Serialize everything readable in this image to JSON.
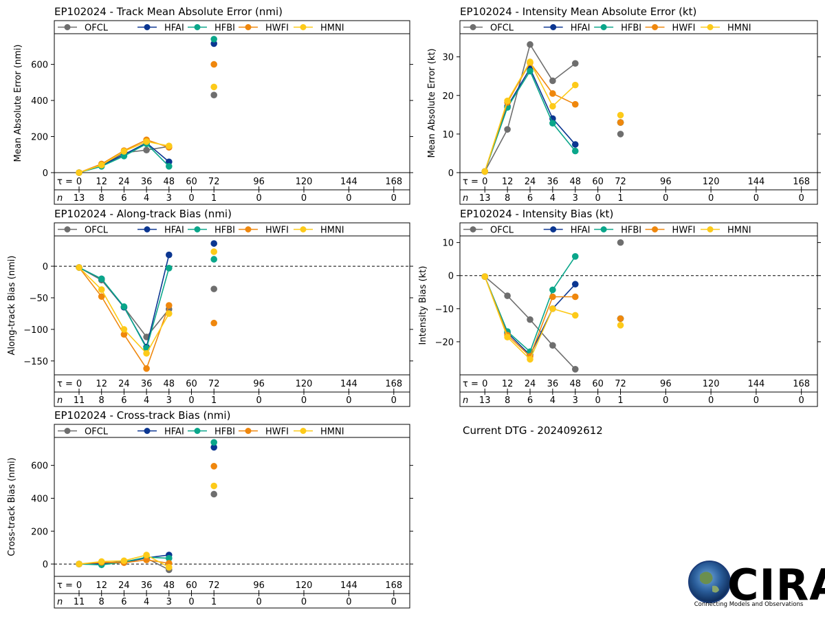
{
  "page": {
    "dtg_text": "Current DTG - 2024092612",
    "logo": {
      "text": "CIRA",
      "tagline": "Connecting Models and Observations"
    }
  },
  "colors": {
    "OFCL": "#6e6e6e",
    "HFAI": "#0b3691",
    "HFBI": "#0aa68a",
    "HWFI": "#ef870d",
    "HMNI": "#fdca19"
  },
  "legend": [
    "OFCL",
    "HFAI",
    "HFBI",
    "HWFI",
    "HMNI"
  ],
  "tau_label": "τ =",
  "n_label": "n",
  "chart_data": [
    {
      "id": "track_mae",
      "type": "line",
      "title": "EP102024 - Track Mean Absolute Error (nmi)",
      "ylabel": "Mean Absolute Error (nmi)",
      "ylim": [
        0,
        770
      ],
      "yticks": [
        0,
        200,
        400,
        600
      ],
      "zero_line": false,
      "x": [
        0,
        12,
        24,
        36,
        48,
        72
      ],
      "series": [
        {
          "name": "OFCL",
          "values": [
            0,
            40,
            110,
            125,
            145,
            430
          ]
        },
        {
          "name": "HFAI",
          "values": [
            0,
            40,
            100,
            165,
            60,
            715
          ]
        },
        {
          "name": "HFBI",
          "values": [
            0,
            35,
            92,
            160,
            35,
            740
          ]
        },
        {
          "name": "HWFI",
          "values": [
            0,
            48,
            122,
            182,
            140,
            600
          ]
        },
        {
          "name": "HMNI",
          "values": [
            0,
            42,
            118,
            172,
            148,
            475
          ]
        }
      ],
      "tau": [
        "0",
        "12",
        "24",
        "36",
        "48",
        "60",
        "72",
        "96",
        "120",
        "144",
        "168"
      ],
      "n": [
        "13",
        "8",
        "6",
        "4",
        "3",
        "0",
        "1",
        "0",
        "0",
        "0",
        "0"
      ]
    },
    {
      "id": "intensity_mae",
      "type": "line",
      "title": "EP102024 - Intensity Mean Absolute Error (kt)",
      "ylabel": "Mean Absolute Error (kt)",
      "ylim": [
        0,
        36
      ],
      "yticks": [
        0,
        10,
        20,
        30
      ],
      "zero_line": false,
      "x": [
        0,
        12,
        24,
        36,
        48,
        72
      ],
      "series": [
        {
          "name": "OFCL",
          "values": [
            0.3,
            11.2,
            33.2,
            23.8,
            28.3,
            10.0
          ]
        },
        {
          "name": "HFAI",
          "values": [
            0.3,
            17.2,
            27.0,
            14.0,
            7.3,
            13.0
          ]
        },
        {
          "name": "HFBI",
          "values": [
            0.3,
            16.9,
            26.3,
            12.8,
            5.6,
            13.0
          ]
        },
        {
          "name": "HWFI",
          "values": [
            0.3,
            18.2,
            28.5,
            20.5,
            17.7,
            13.0
          ]
        },
        {
          "name": "HMNI",
          "values": [
            0.3,
            18.6,
            28.7,
            17.2,
            22.7,
            14.9
          ]
        }
      ],
      "tau": [
        "0",
        "12",
        "24",
        "36",
        "48",
        "60",
        "72",
        "96",
        "120",
        "144",
        "168"
      ],
      "n": [
        "13",
        "8",
        "6",
        "4",
        "3",
        "0",
        "1",
        "0",
        "0",
        "0",
        "0"
      ]
    },
    {
      "id": "along_track",
      "type": "line",
      "title": "EP102024 - Along-track Bias (nmi)",
      "ylabel": "Along-track Bias (nmi)",
      "ylim": [
        -172,
        48
      ],
      "yticks": [
        -150,
        -100,
        -50,
        0
      ],
      "zero_line": true,
      "x": [
        0,
        12,
        24,
        36,
        48,
        72
      ],
      "series": [
        {
          "name": "OFCL",
          "values": [
            -2,
            -22,
            -65,
            -112,
            -68,
            -36
          ]
        },
        {
          "name": "HFAI",
          "values": [
            -2,
            -20,
            -65,
            -128,
            18,
            36
          ]
        },
        {
          "name": "HFBI",
          "values": [
            -2,
            -20,
            -64,
            -130,
            -3,
            11
          ]
        },
        {
          "name": "HWFI",
          "values": [
            -2,
            -48,
            -108,
            -162,
            -62,
            -90
          ]
        },
        {
          "name": "HMNI",
          "values": [
            -2,
            -37,
            -100,
            -138,
            -75,
            23
          ]
        }
      ],
      "tau": [
        "0",
        "12",
        "24",
        "36",
        "48",
        "60",
        "72",
        "96",
        "120",
        "144",
        "168"
      ],
      "n": [
        "11",
        "8",
        "6",
        "4",
        "3",
        "0",
        "1",
        "0",
        "0",
        "0",
        "0"
      ]
    },
    {
      "id": "intensity_bias",
      "type": "line",
      "title": "EP102024 - Intensity Bias (kt)",
      "ylabel": "Intensity Bias (kt)",
      "ylim": [
        -30,
        12
      ],
      "yticks": [
        -20,
        -10,
        0,
        10
      ],
      "zero_line": true,
      "x": [
        0,
        12,
        24,
        36,
        48,
        72
      ],
      "series": [
        {
          "name": "OFCL",
          "values": [
            -0.3,
            -6.1,
            -13.3,
            -21.1,
            -28.3,
            10.0
          ]
        },
        {
          "name": "HFAI",
          "values": [
            -0.3,
            -17.3,
            -24.0,
            -10.0,
            -2.6,
            -13.0
          ]
        },
        {
          "name": "HFBI",
          "values": [
            -0.3,
            -16.9,
            -23.0,
            -4.3,
            5.8,
            -13.0
          ]
        },
        {
          "name": "HWFI",
          "values": [
            -0.3,
            -18.0,
            -24.4,
            -6.4,
            -6.4,
            -13.0
          ]
        },
        {
          "name": "HMNI",
          "values": [
            -0.3,
            -18.6,
            -25.3,
            -10.0,
            -12.0,
            -15.0
          ]
        }
      ],
      "tau": [
        "0",
        "12",
        "24",
        "36",
        "48",
        "60",
        "72",
        "96",
        "120",
        "144",
        "168"
      ],
      "n": [
        "13",
        "8",
        "6",
        "4",
        "3",
        "0",
        "1",
        "0",
        "0",
        "0",
        "0"
      ]
    },
    {
      "id": "cross_track",
      "type": "line",
      "title": "EP102024 - Cross-track Bias (nmi)",
      "ylabel": "Cross-track Bias (nmi)",
      "ylim": [
        -75,
        770
      ],
      "yticks": [
        0,
        200,
        400,
        600
      ],
      "zero_line": true,
      "x": [
        0,
        12,
        24,
        36,
        48,
        72
      ],
      "series": [
        {
          "name": "OFCL",
          "values": [
            0,
            5,
            15,
            35,
            -35,
            425
          ]
        },
        {
          "name": "HFAI",
          "values": [
            0,
            0,
            10,
            38,
            55,
            710
          ]
        },
        {
          "name": "HFBI",
          "values": [
            0,
            -5,
            12,
            42,
            35,
            740
          ]
        },
        {
          "name": "HWFI",
          "values": [
            0,
            10,
            8,
            25,
            5,
            595
          ]
        },
        {
          "name": "HMNI",
          "values": [
            0,
            15,
            20,
            55,
            -20,
            475
          ]
        }
      ],
      "tau": [
        "0",
        "12",
        "24",
        "36",
        "48",
        "60",
        "72",
        "96",
        "120",
        "144",
        "168"
      ],
      "n": [
        "11",
        "8",
        "6",
        "4",
        "3",
        "0",
        "1",
        "0",
        "0",
        "0",
        "0"
      ]
    }
  ]
}
